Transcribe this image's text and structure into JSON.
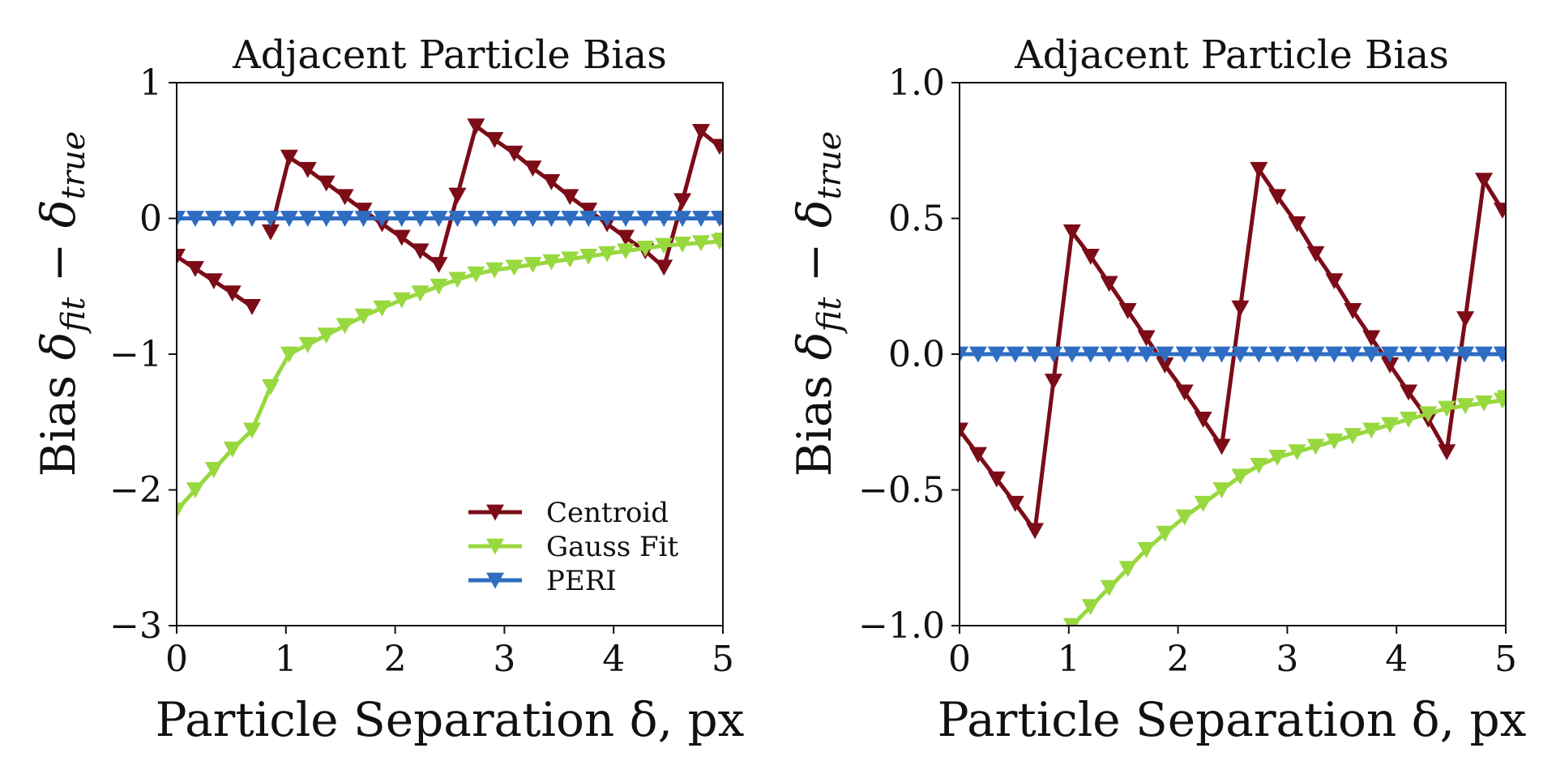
{
  "chart_data": [
    {
      "type": "line",
      "title": "Adjacent Particle Bias",
      "xlabel": "Particle Separation δ, px",
      "ylabel_prefix": "Bias ",
      "ylabel_math": "δ",
      "ylabel_sub_fit": "fit",
      "ylabel_minus": " − ",
      "ylabel_sub_true": "true",
      "xlim": [
        0,
        5
      ],
      "ylim": [
        -3,
        1
      ],
      "xticks": [
        0,
        1,
        2,
        3,
        4,
        5
      ],
      "xtick_labels": [
        "0",
        "1",
        "2",
        "3",
        "4",
        "5"
      ],
      "yticks": [
        1,
        0,
        -1,
        -2,
        -3
      ],
      "ytick_labels": [
        "1",
        "0",
        "−1",
        "−2",
        "−3"
      ],
      "legend": {
        "location": "lower-right",
        "entries": [
          "Centroid",
          "Gauss Fit",
          "PERI"
        ]
      },
      "x": [
        0.0,
        0.1,
        0.2,
        0.3,
        0.4,
        0.5,
        0.6,
        0.7,
        0.8,
        0.9,
        1.0,
        1.1,
        1.2,
        1.3,
        1.4,
        1.5,
        1.6,
        1.7,
        1.8,
        1.9,
        2.0,
        2.1,
        2.2,
        2.3,
        2.4,
        2.5,
        2.6,
        2.7,
        2.8,
        2.9,
        3.0,
        3.1,
        3.2,
        3.3,
        3.4,
        3.5,
        3.6,
        3.7,
        3.8,
        3.9,
        4.0,
        4.1,
        4.2,
        4.3,
        4.4,
        4.5,
        4.6,
        4.7,
        4.8,
        4.9,
        5.0
      ],
      "series": [
        {
          "name": "Centroid",
          "color": "#7b0c18",
          "values": [
            -0.28,
            -0.37,
            -0.46,
            -0.55,
            -0.65,
            null,
            null,
            null,
            null,
            -0.1,
            0.45,
            0.36,
            0.26,
            0.16,
            0.06,
            -0.04,
            -0.14,
            -0.24,
            -0.34,
            0.17,
            0.68,
            0.58,
            0.48,
            0.37,
            0.27,
            0.16,
            0.06,
            -0.04,
            -0.14,
            -0.24,
            -0.36,
            0.13,
            0.64,
            0.53
          ],
          "x_values": [
            0.0,
            0.17,
            0.34,
            0.51,
            0.69,
            null,
            null,
            null,
            null,
            0.86,
            1.03,
            1.2,
            1.37,
            1.54,
            1.71,
            1.88,
            2.06,
            2.23,
            2.4,
            2.57,
            2.74,
            2.91,
            3.09,
            3.26,
            3.43,
            3.6,
            3.77,
            3.94,
            4.11,
            4.29,
            4.46,
            4.63,
            4.8,
            4.97
          ]
        },
        {
          "name": "Gauss Fit",
          "color": "#98d83f",
          "values": [
            -2.15,
            -2.0,
            -1.85,
            -1.7,
            -1.56,
            -1.24,
            -1.0,
            -0.93,
            -0.86,
            -0.79,
            -0.72,
            -0.66,
            -0.6,
            -0.55,
            -0.5,
            -0.45,
            -0.41,
            -0.38,
            -0.36,
            -0.34,
            -0.32,
            -0.3,
            -0.28,
            -0.26,
            -0.24,
            -0.22,
            -0.2,
            -0.19,
            -0.18,
            -0.17,
            -0.16
          ],
          "x_values": [
            0.0,
            0.17,
            0.34,
            0.51,
            0.69,
            0.86,
            1.03,
            1.2,
            1.37,
            1.54,
            1.71,
            1.88,
            2.06,
            2.23,
            2.4,
            2.57,
            2.74,
            2.91,
            3.09,
            3.26,
            3.43,
            3.6,
            3.77,
            3.94,
            4.11,
            4.29,
            4.46,
            4.63,
            4.8,
            4.97,
            5.0
          ]
        },
        {
          "name": "PERI",
          "color": "#2e6dc2",
          "values": [
            0,
            0,
            0,
            0,
            0,
            0,
            0,
            0,
            0,
            0,
            0,
            0,
            0,
            0,
            0,
            0,
            0,
            0,
            0,
            0,
            0,
            0,
            0,
            0,
            0,
            0,
            0,
            0,
            0,
            0,
            0
          ],
          "x_values": [
            0.0,
            0.17,
            0.34,
            0.51,
            0.69,
            0.86,
            1.03,
            1.2,
            1.37,
            1.54,
            1.71,
            1.88,
            2.06,
            2.23,
            2.4,
            2.57,
            2.74,
            2.91,
            3.09,
            3.26,
            3.43,
            3.6,
            3.77,
            3.94,
            4.11,
            4.29,
            4.46,
            4.63,
            4.8,
            4.97,
            5.0
          ]
        }
      ]
    },
    {
      "type": "line",
      "title": "Adjacent Particle Bias",
      "xlabel": "Particle Separation δ, px",
      "ylabel_prefix": "Bias ",
      "ylabel_math": "δ",
      "ylabel_sub_fit": "fit",
      "ylabel_minus": " − ",
      "ylabel_sub_true": "true",
      "xlim": [
        0,
        5
      ],
      "ylim": [
        -1.0,
        1.0
      ],
      "xticks": [
        0,
        1,
        2,
        3,
        4,
        5
      ],
      "xtick_labels": [
        "0",
        "1",
        "2",
        "3",
        "4",
        "5"
      ],
      "yticks": [
        1.0,
        0.5,
        0.0,
        -0.5,
        -1.0
      ],
      "ytick_labels": [
        "1.0",
        "0.5",
        "0.0",
        "−0.5",
        "−1.0"
      ],
      "series": [
        {
          "name": "Centroid",
          "color": "#7b0c18",
          "values": [
            -0.28,
            -0.37,
            -0.46,
            -0.55,
            -0.65,
            -0.1,
            0.45,
            0.36,
            0.26,
            0.16,
            0.06,
            -0.04,
            -0.14,
            -0.24,
            -0.34,
            0.17,
            0.68,
            0.58,
            0.48,
            0.37,
            0.27,
            0.16,
            0.06,
            -0.04,
            -0.14,
            -0.24,
            -0.36,
            0.13,
            0.64,
            0.53
          ],
          "x_values": [
            0.0,
            0.17,
            0.34,
            0.51,
            0.69,
            0.86,
            1.03,
            1.2,
            1.37,
            1.54,
            1.71,
            1.88,
            2.06,
            2.23,
            2.4,
            2.57,
            2.74,
            2.91,
            3.09,
            3.26,
            3.43,
            3.6,
            3.77,
            3.94,
            4.11,
            4.29,
            4.46,
            4.63,
            4.8,
            4.97
          ]
        },
        {
          "name": "Gauss Fit",
          "color": "#98d83f",
          "values": [
            -1.0,
            -0.93,
            -0.86,
            -0.79,
            -0.72,
            -0.66,
            -0.6,
            -0.55,
            -0.5,
            -0.45,
            -0.41,
            -0.38,
            -0.36,
            -0.34,
            -0.32,
            -0.3,
            -0.28,
            -0.26,
            -0.24,
            -0.22,
            -0.2,
            -0.19,
            -0.18,
            -0.17,
            -0.16
          ],
          "x_values": [
            1.03,
            1.2,
            1.37,
            1.54,
            1.71,
            1.88,
            2.06,
            2.23,
            2.4,
            2.57,
            2.74,
            2.91,
            3.09,
            3.26,
            3.43,
            3.6,
            3.77,
            3.94,
            4.11,
            4.29,
            4.46,
            4.63,
            4.8,
            4.97,
            5.0
          ]
        },
        {
          "name": "PERI",
          "color": "#2e6dc2",
          "values": [
            0,
            0,
            0,
            0,
            0,
            0,
            0,
            0,
            0,
            0,
            0,
            0,
            0,
            0,
            0,
            0,
            0,
            0,
            0,
            0,
            0,
            0,
            0,
            0,
            0,
            0,
            0,
            0,
            0,
            0,
            0
          ],
          "x_values": [
            0.0,
            0.17,
            0.34,
            0.51,
            0.69,
            0.86,
            1.03,
            1.2,
            1.37,
            1.54,
            1.71,
            1.88,
            2.06,
            2.23,
            2.4,
            2.57,
            2.74,
            2.91,
            3.09,
            3.26,
            3.43,
            3.6,
            3.77,
            3.94,
            4.11,
            4.29,
            4.46,
            4.63,
            4.8,
            4.97,
            5.0
          ]
        }
      ]
    }
  ]
}
